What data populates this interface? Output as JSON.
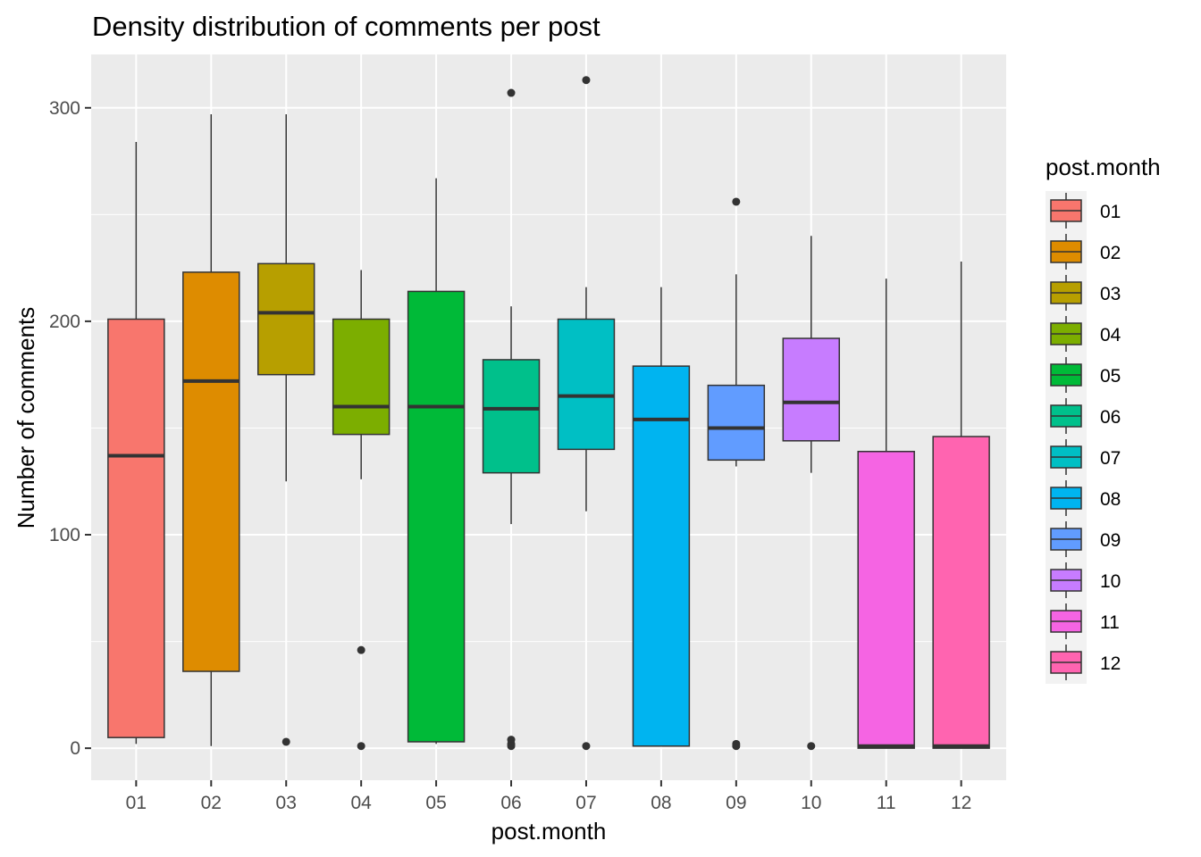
{
  "chart_data": {
    "type": "box",
    "title": "Density distribution of comments per post",
    "xlabel": "post.month",
    "ylabel": "Number of comments",
    "ylim": [
      -15,
      325
    ],
    "yticks": [
      0,
      100,
      200,
      300
    ],
    "grid": true,
    "legend": {
      "title": "post.month",
      "placement": "right"
    },
    "categories": [
      "01",
      "02",
      "03",
      "04",
      "05",
      "06",
      "07",
      "08",
      "09",
      "10",
      "11",
      "12"
    ],
    "colors": [
      "#F8766D",
      "#DE8C00",
      "#B79F00",
      "#7CAE00",
      "#00BA38",
      "#00C08B",
      "#00BFC4",
      "#00B4F0",
      "#619CFF",
      "#C77CFF",
      "#F564E3",
      "#FF64B0"
    ],
    "series": [
      {
        "category": "01",
        "whisker_low": 2,
        "q1": 5,
        "median": 137,
        "q3": 201,
        "whisker_high": 284,
        "outliers": []
      },
      {
        "category": "02",
        "whisker_low": 1,
        "q1": 36,
        "median": 172,
        "q3": 223,
        "whisker_high": 297,
        "outliers": []
      },
      {
        "category": "03",
        "whisker_low": 125,
        "q1": 175,
        "median": 204,
        "q3": 227,
        "whisker_high": 297,
        "outliers": [
          3
        ]
      },
      {
        "category": "04",
        "whisker_low": 126,
        "q1": 147,
        "median": 160,
        "q3": 201,
        "whisker_high": 224,
        "outliers": [
          46,
          1
        ]
      },
      {
        "category": "05",
        "whisker_low": 2,
        "q1": 3,
        "median": 160,
        "q3": 214,
        "whisker_high": 267,
        "outliers": []
      },
      {
        "category": "06",
        "whisker_low": 105,
        "q1": 129,
        "median": 159,
        "q3": 182,
        "whisker_high": 207,
        "outliers": [
          307,
          4,
          2,
          1
        ]
      },
      {
        "category": "07",
        "whisker_low": 111,
        "q1": 140,
        "median": 165,
        "q3": 201,
        "whisker_high": 216,
        "outliers": [
          313,
          1
        ]
      },
      {
        "category": "08",
        "whisker_low": 1,
        "q1": 1,
        "median": 154,
        "q3": 179,
        "whisker_high": 216,
        "outliers": []
      },
      {
        "category": "09",
        "whisker_low": 132,
        "q1": 135,
        "median": 150,
        "q3": 170,
        "whisker_high": 222,
        "outliers": [
          256,
          2,
          1
        ]
      },
      {
        "category": "10",
        "whisker_low": 129,
        "q1": 144,
        "median": 162,
        "q3": 192,
        "whisker_high": 240,
        "outliers": [
          1
        ]
      },
      {
        "category": "11",
        "whisker_low": 0,
        "q1": 0,
        "median": 1,
        "q3": 139,
        "whisker_high": 220,
        "outliers": []
      },
      {
        "category": "12",
        "whisker_low": 0,
        "q1": 0,
        "median": 1,
        "q3": 146,
        "whisker_high": 228,
        "outliers": []
      }
    ]
  }
}
